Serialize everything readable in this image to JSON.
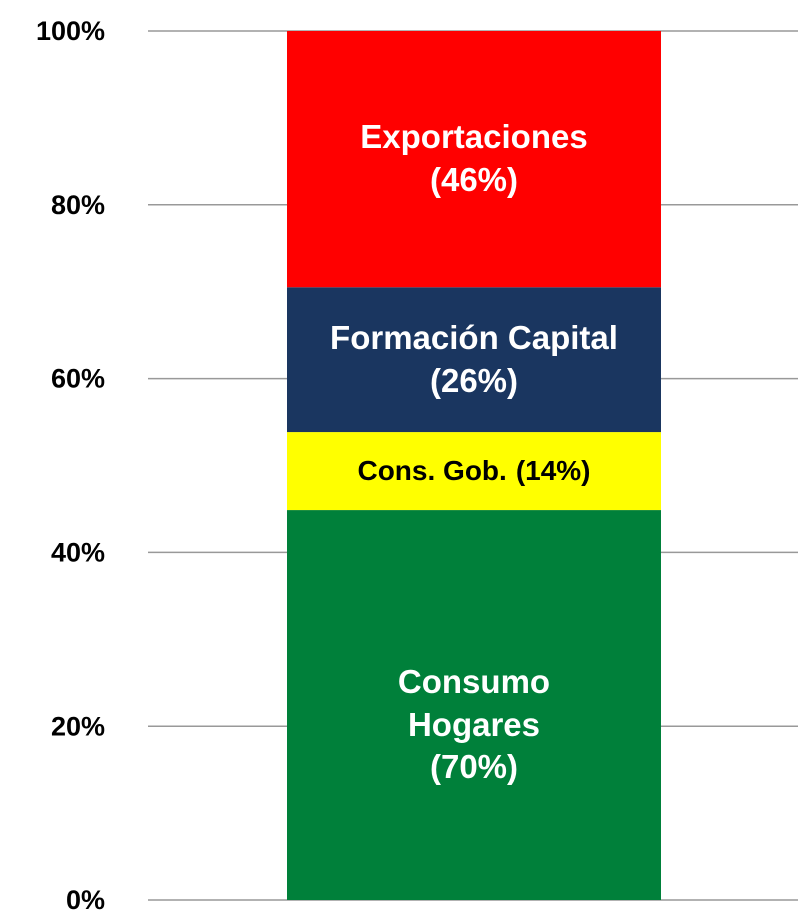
{
  "chart_data": {
    "type": "bar",
    "stack": "percent",
    "categories": [
      null
    ],
    "series": [
      {
        "name": "Consumo Hogares",
        "color": "#00803a",
        "values": [
          70
        ],
        "value_labels": [
          "(70%)"
        ]
      },
      {
        "name": "Cons. Gob.",
        "color": "#ffff00",
        "values": [
          14
        ],
        "value_labels": [
          "(14%)"
        ]
      },
      {
        "name": "Formación Capital",
        "color": "#1a3660",
        "values": [
          26
        ],
        "value_labels": [
          "(26%)"
        ]
      },
      {
        "name": "Exportaciones",
        "color": "#ff0000",
        "values": [
          46
        ],
        "value_labels": [
          "(46%)"
        ]
      }
    ],
    "ylim": [
      0,
      100
    ],
    "yticks": [
      {
        "value": 0,
        "label": "0%"
      },
      {
        "value": 20,
        "label": "20%"
      },
      {
        "value": 40,
        "label": "40%"
      },
      {
        "value": 60,
        "label": "60%"
      },
      {
        "value": 80,
        "label": "80%"
      },
      {
        "value": 100,
        "label": "100%"
      }
    ],
    "grid": true
  }
}
